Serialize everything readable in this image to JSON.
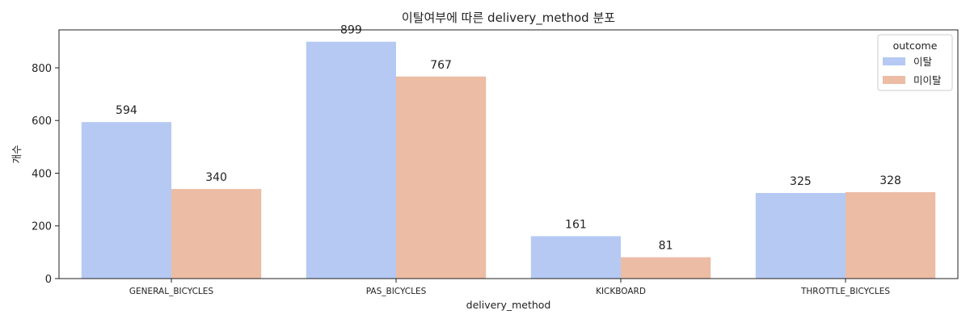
{
  "chart_data": {
    "type": "bar",
    "title": "이탈여부에 따른 delivery_method 분포",
    "xlabel": "delivery_method",
    "ylabel": "개수",
    "categories": [
      "GENERAL_BICYCLES",
      "PAS_BICYCLES",
      "KICKBOARD",
      "THROTTLE_BICYCLES"
    ],
    "series": [
      {
        "name": "이탈",
        "values": [
          594,
          899,
          161,
          325
        ],
        "color": "#b5c9f3"
      },
      {
        "name": "미이탈",
        "values": [
          340,
          767,
          81,
          328
        ],
        "color": "#ecbca5"
      }
    ],
    "ylim": [
      0,
      944
    ],
    "yticks": [
      0,
      200,
      400,
      600,
      800
    ],
    "legend": {
      "title": "outcome",
      "position": "top-right"
    },
    "grid": false
  }
}
